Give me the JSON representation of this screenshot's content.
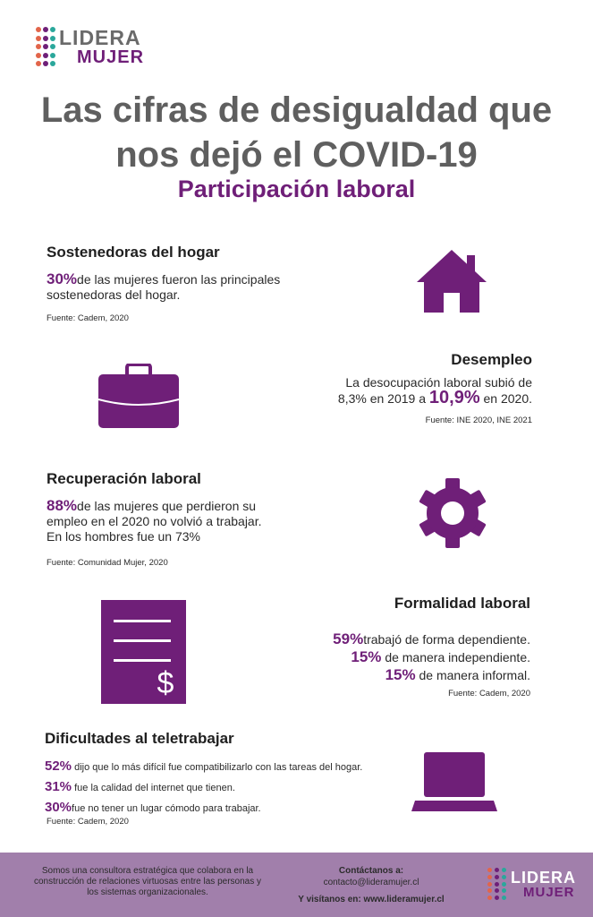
{
  "logo": {
    "word1": "LIDERA",
    "word2": "MUJER"
  },
  "header": {
    "title_line1": "Las cifras de desigualdad que",
    "title_line2": "nos dejó el COVID-19",
    "subtitle": "Participación laboral"
  },
  "sections": {
    "sostenedoras": {
      "title": "Sostenedoras del hogar",
      "pct": "30%",
      "text_line1": "de las mujeres fueron las principales",
      "text_line2": "sostenedoras del hogar.",
      "source": "Fuente: Cadem, 2020",
      "icon": "house-icon"
    },
    "desempleo": {
      "title": "Desempleo",
      "text_line1": "La desocupación laboral subió de",
      "text_line2_a": "8,3% en 2019 a ",
      "pct": "10,9%",
      "text_line2_b": "en 2020.",
      "source": "Fuente: INE 2020, INE 2021",
      "icon": "briefcase-icon"
    },
    "recuperacion": {
      "title": "Recuperación laboral",
      "pct": "88%",
      "text_line1": "de las mujeres que perdieron su",
      "text_line2": "empleo en el 2020 no volvió a trabajar.",
      "text_line3": "En los hombres fue un 73%",
      "source": "Fuente: Comunidad Mujer, 2020",
      "icon": "gear-icon"
    },
    "formalidad": {
      "title": "Formalidad laboral",
      "rows": [
        {
          "pct": "59%",
          "text": "trabajó de forma dependiente."
        },
        {
          "pct": "15%",
          "text": "de manera independiente."
        },
        {
          "pct": "15%",
          "text": "de manera informal."
        }
      ],
      "source": "Fuente: Cadem, 2020",
      "icon": "invoice-icon"
    },
    "teletrabajo": {
      "title": "Dificultades al teletrabajar",
      "rows": [
        {
          "pct": "52%",
          "text": "dijo que lo más difícil fue compatibilizarlo con las tareas del hogar."
        },
        {
          "pct": "31%",
          "text": "fue la calidad del internet que tienen."
        },
        {
          "pct": "30%",
          "text": "fue no tener un lugar cómodo para trabajar."
        }
      ],
      "source": "Fuente: Cadem, 2020",
      "icon": "laptop-icon"
    }
  },
  "footer": {
    "about_line1": "Somos una consultora estratégica que colabora en la",
    "about_line2": "construcción de relaciones virtuosas entre las personas y",
    "about_line3": "los sistemas organizacionales.",
    "contact_label": "Contáctanos a:",
    "contact_email": "contacto@lideramujer.cl",
    "visit": "Y visítanos en: www.lideramujer.cl"
  },
  "colors": {
    "accent": "#6f1f78",
    "title_gray": "#5f5f5f",
    "footer_bg": "#a17fab"
  }
}
